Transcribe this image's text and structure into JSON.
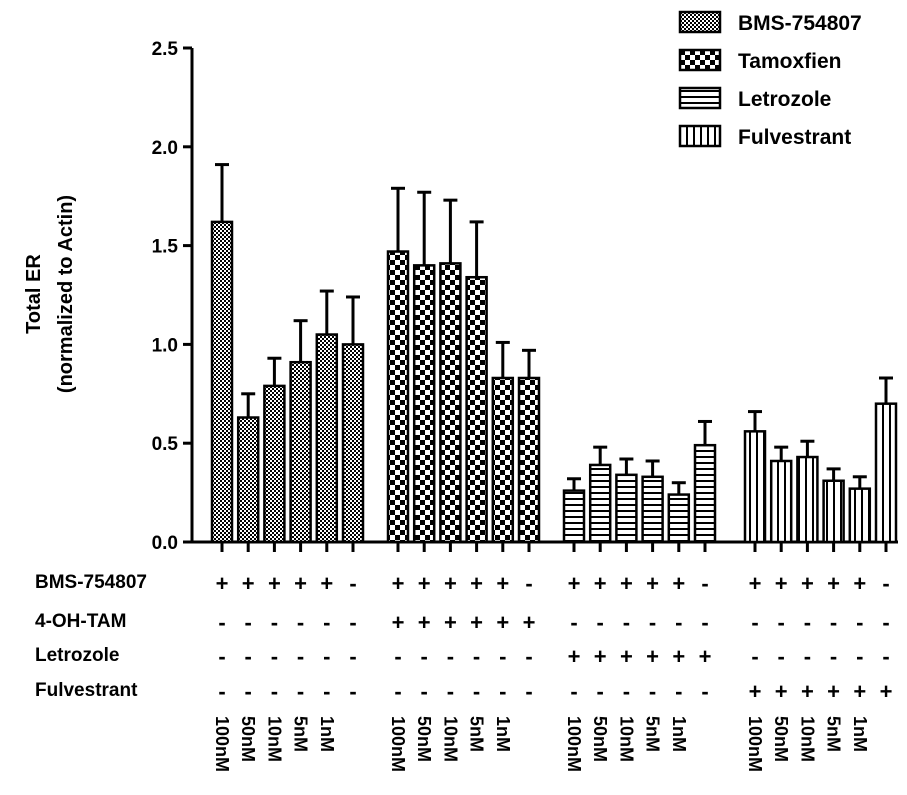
{
  "chart_data": {
    "type": "bar",
    "ylabel": "Total ER",
    "ylabel_sub": "(normalized to Actin)",
    "ylim": [
      0,
      2.5
    ],
    "yticks": [
      "0.0",
      "0.5",
      "1.0",
      "1.5",
      "2.0",
      "2.5"
    ],
    "ytick_values": [
      0,
      0.5,
      1.0,
      1.5,
      2.0,
      2.5
    ],
    "grid": false,
    "legend_position": "top-right",
    "series": [
      {
        "name": "BMS-754807",
        "pattern": "fine-check",
        "values": [
          1.62,
          0.63,
          0.79,
          0.91,
          1.05,
          1.0
        ],
        "errors": [
          0.29,
          0.12,
          0.14,
          0.21,
          0.22,
          0.24
        ]
      },
      {
        "name": "Tamoxfien",
        "pattern": "coarse-check",
        "values": [
          1.47,
          1.4,
          1.41,
          1.34,
          0.83,
          0.83
        ],
        "errors": [
          0.32,
          0.37,
          0.32,
          0.28,
          0.18,
          0.14
        ]
      },
      {
        "name": "Letrozole",
        "pattern": "horizontal",
        "values": [
          0.26,
          0.39,
          0.34,
          0.33,
          0.24,
          0.49
        ],
        "errors": [
          0.06,
          0.09,
          0.08,
          0.08,
          0.06,
          0.12
        ]
      },
      {
        "name": "Fulvestrant",
        "pattern": "vertical",
        "values": [
          0.56,
          0.41,
          0.43,
          0.31,
          0.27,
          0.7
        ],
        "errors": [
          0.1,
          0.07,
          0.08,
          0.06,
          0.06,
          0.13
        ]
      }
    ],
    "doses": [
      "100nM",
      "50nM",
      "10nM",
      "5nM",
      "1nM"
    ],
    "treatment_rows": [
      {
        "label": "BMS-754807",
        "signs": [
          [
            "+",
            "+",
            "+",
            "+",
            "+",
            "-"
          ],
          [
            "+",
            "+",
            "+",
            "+",
            "+",
            "-"
          ],
          [
            "+",
            "+",
            "+",
            "+",
            "+",
            "-"
          ],
          [
            "+",
            "+",
            "+",
            "+",
            "+",
            "-"
          ]
        ]
      },
      {
        "label": "4-OH-TAM",
        "signs": [
          [
            "-",
            "-",
            "-",
            "-",
            "-",
            "-"
          ],
          [
            "+",
            "+",
            "+",
            "+",
            "+",
            "+"
          ],
          [
            "-",
            "-",
            "-",
            "-",
            "-",
            "-"
          ],
          [
            "-",
            "-",
            "-",
            "-",
            "-",
            "-"
          ]
        ]
      },
      {
        "label": "Letrozole",
        "signs": [
          [
            "-",
            "-",
            "-",
            "-",
            "-",
            "-"
          ],
          [
            "-",
            "-",
            "-",
            "-",
            "-",
            "-"
          ],
          [
            "+",
            "+",
            "+",
            "+",
            "+",
            "+"
          ],
          [
            "-",
            "-",
            "-",
            "-",
            "-",
            "-"
          ]
        ]
      },
      {
        "label": "Fulvestrant",
        "signs": [
          [
            "-",
            "-",
            "-",
            "-",
            "-",
            "-"
          ],
          [
            "-",
            "-",
            "-",
            "-",
            "-",
            "-"
          ],
          [
            "-",
            "-",
            "-",
            "-",
            "-",
            "-"
          ],
          [
            "+",
            "+",
            "+",
            "+",
            "+",
            "+"
          ]
        ]
      }
    ]
  }
}
